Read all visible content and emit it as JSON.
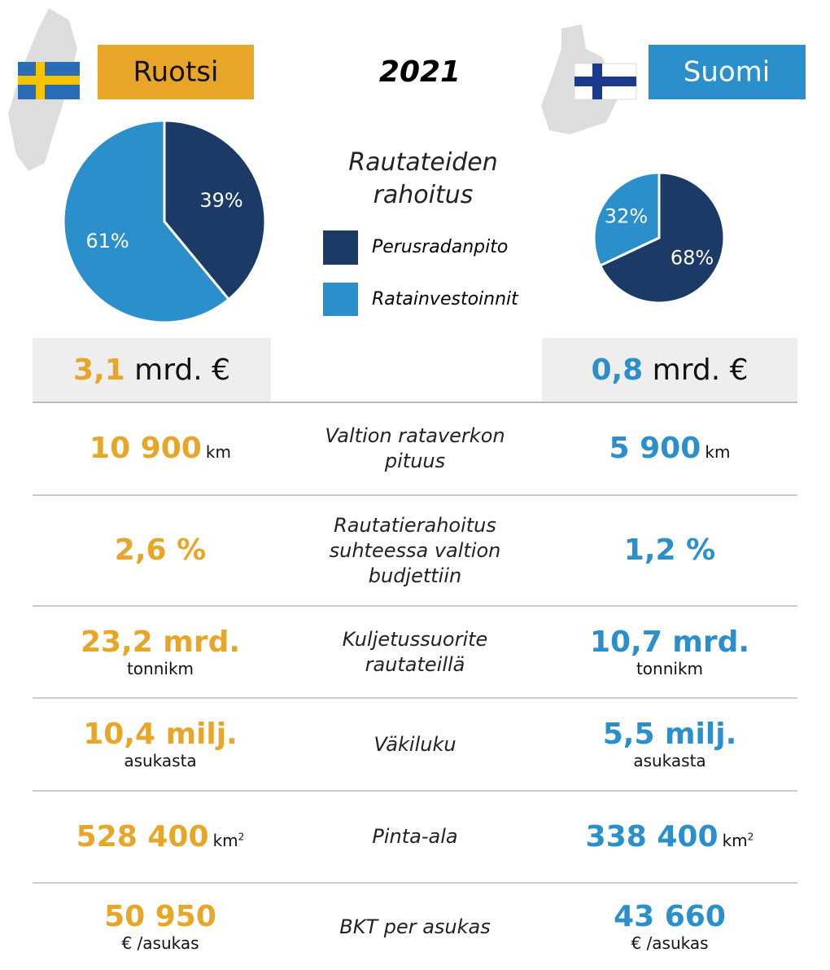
{
  "header": {
    "left_country": "Ruotsi",
    "year": "2021",
    "right_country": "Suomi"
  },
  "chart_data": [
    {
      "type": "pie",
      "legend_title": "Rautateiden rahoitus",
      "categories": [
        "Perusradanpito",
        "Ratainvestoinnit"
      ],
      "values": [
        39,
        61
      ],
      "value_labels": [
        "39%",
        "61%"
      ],
      "colors": [
        "#1b3a66",
        "#2a8fcb"
      ]
    },
    {
      "type": "pie",
      "categories": [
        "Perusradanpito",
        "Ratainvestoinnit"
      ],
      "values": [
        68,
        32
      ],
      "value_labels": [
        "68%",
        "32%"
      ],
      "colors": [
        "#1b3a66",
        "#2a8fcb"
      ]
    }
  ],
  "totals": {
    "left_value": "3,1",
    "left_unit": "mrd. €",
    "right_value": "0,8",
    "right_unit": "mrd. €"
  },
  "rows": [
    {
      "label": "Valtion rataverkon pituus",
      "left_value": "10 900",
      "left_unit": "km",
      "right_value": "5 900",
      "right_unit": "km",
      "unit_inline": true
    },
    {
      "label": "Rautatierahoitus suhteessa valtion budjettiin",
      "left_value": "2,6 %",
      "right_value": "1,2 %"
    },
    {
      "label": "Kuljetussuorite rautateillä",
      "left_value": "23,2 mrd.",
      "left_unit": "tonnikm",
      "right_value": "10,7 mrd.",
      "right_unit": "tonnikm"
    },
    {
      "label": "Väkiluku",
      "left_value": "10,4 milj.",
      "left_unit": "asukasta",
      "right_value": "5,5 milj.",
      "right_unit": "asukasta"
    },
    {
      "label": "Pinta-ala",
      "left_value": "528 400",
      "left_unit": "km",
      "left_sup": "2",
      "right_value": "338 400",
      "right_unit": "km",
      "right_sup": "2",
      "unit_inline": true
    },
    {
      "label": "BKT per asukas",
      "left_value": "50 950",
      "left_unit": "€ /asukas",
      "right_value": "43 660",
      "right_unit": "€ /asukas"
    }
  ]
}
